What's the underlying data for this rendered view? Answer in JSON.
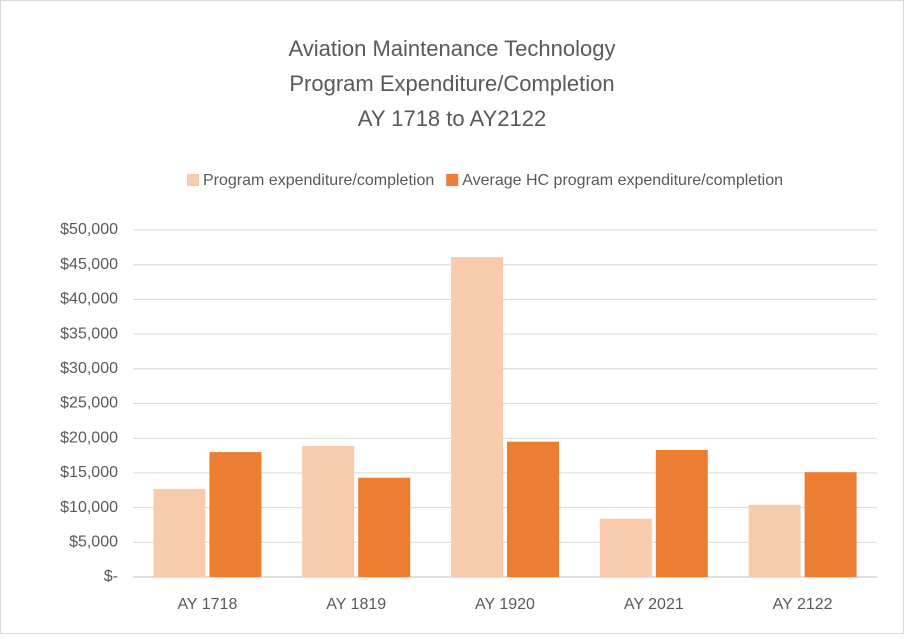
{
  "chart_data": {
    "type": "bar",
    "title": [
      "Aviation Maintenance Technology",
      "Program Expenditure/Completion",
      "AY 1718 to AY2122"
    ],
    "categories": [
      "AY 1718",
      "AY 1819",
      "AY 1920",
      "AY 2021",
      "AY 2122"
    ],
    "series": [
      {
        "name": "Program expenditure/completion",
        "color": "#f8cbad",
        "values": [
          12700,
          18900,
          46100,
          8400,
          10400
        ]
      },
      {
        "name": "Average HC program expenditure/completion",
        "color": "#ed7d31",
        "values": [
          18000,
          14300,
          19500,
          18300,
          15100
        ]
      }
    ],
    "ylim": [
      0,
      50000
    ],
    "yticks": [
      {
        "value": 0,
        "label": "$-"
      },
      {
        "value": 5000,
        "label": "$5,000"
      },
      {
        "value": 10000,
        "label": "$10,000"
      },
      {
        "value": 15000,
        "label": "$15,000"
      },
      {
        "value": 20000,
        "label": "$20,000"
      },
      {
        "value": 25000,
        "label": "$25,000"
      },
      {
        "value": 30000,
        "label": "$30,000"
      },
      {
        "value": 35000,
        "label": "$35,000"
      },
      {
        "value": 40000,
        "label": "$40,000"
      },
      {
        "value": 45000,
        "label": "$45,000"
      },
      {
        "value": 50000,
        "label": "$50,000"
      }
    ],
    "grid": true,
    "legend": "top"
  }
}
